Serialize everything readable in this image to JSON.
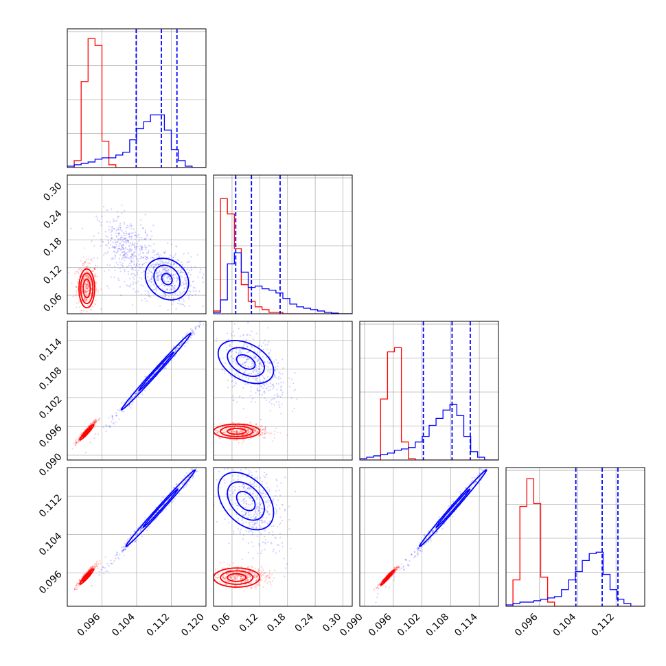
{
  "chart_data": {
    "type": "corner",
    "title": "",
    "grid": true,
    "colors": {
      "red": "#ff0000",
      "blue": "#0000ff"
    },
    "series": [
      {
        "color": "red"
      },
      {
        "color": "blue"
      }
    ],
    "variables": [
      {
        "range": [
          0.088,
          0.12
        ],
        "ticks": [
          "0.096",
          "0.104",
          "0.112",
          "0.120"
        ]
      },
      {
        "range": [
          0.02,
          0.32
        ],
        "ticks": [
          "0.06",
          "0.12",
          "0.18",
          "0.24",
          "0.30"
        ]
      },
      {
        "range": [
          0.089,
          0.118
        ],
        "ticks": [
          "0.090",
          "0.096",
          "0.102",
          "0.108",
          "0.114"
        ]
      },
      {
        "range": [
          0.089,
          0.118
        ],
        "ticks": [
          "0.096",
          "0.104",
          "0.112"
        ]
      }
    ],
    "quantiles_blue": [
      [
        0.1039,
        0.1097,
        0.1133
      ],
      [
        0.068,
        0.102,
        0.164
      ],
      [
        0.1023,
        0.1083,
        0.1121
      ],
      [
        0.1036,
        0.1091,
        0.1124
      ]
    ],
    "histograms": [
      {
        "red": [
          0,
          0.05,
          0.62,
          0.93,
          0.88,
          0.19,
          0.02,
          0,
          0,
          0,
          0,
          0,
          0,
          0,
          0,
          0,
          0,
          0,
          0,
          0
        ],
        "blue": [
          0.01,
          0.02,
          0.03,
          0.04,
          0.06,
          0.07,
          0.07,
          0.09,
          0.11,
          0.2,
          0.28,
          0.33,
          0.38,
          0.38,
          0.27,
          0.13,
          0.05,
          0.01,
          0,
          0
        ]
      },
      {
        "red": [
          0.02,
          0.83,
          0.72,
          0.47,
          0.21,
          0.09,
          0.05,
          0.03,
          0.01,
          0.01,
          0,
          0,
          0,
          0,
          0,
          0,
          0,
          0,
          0,
          0
        ],
        "blue": [
          0.01,
          0.1,
          0.36,
          0.44,
          0.3,
          0.19,
          0.2,
          0.18,
          0.17,
          0.15,
          0.11,
          0.07,
          0.05,
          0.04,
          0.03,
          0.02,
          0.01,
          0.005,
          0,
          0
        ]
      },
      {
        "red": [
          0,
          0,
          0,
          0.44,
          0.78,
          0.81,
          0.13,
          0.01,
          0,
          0,
          0,
          0,
          0,
          0,
          0,
          0,
          0,
          0,
          0,
          0
        ],
        "blue": [
          0.01,
          0.02,
          0.03,
          0.04,
          0.05,
          0.07,
          0.08,
          0.09,
          0.13,
          0.17,
          0.25,
          0.3,
          0.36,
          0.4,
          0.32,
          0.17,
          0.06,
          0.02,
          0,
          0
        ]
      },
      {
        "red": [
          0,
          0.19,
          0.72,
          0.92,
          0.74,
          0.21,
          0.03,
          0,
          0,
          0,
          0,
          0,
          0,
          0,
          0,
          0,
          0,
          0,
          0,
          0
        ],
        "blue": [
          0.01,
          0.02,
          0.03,
          0.03,
          0.04,
          0.05,
          0.06,
          0.07,
          0.12,
          0.19,
          0.25,
          0.33,
          0.38,
          0.39,
          0.23,
          0.12,
          0.05,
          0.02,
          0,
          0
        ]
      }
    ],
    "scatter_2d": [
      {
        "row": 1,
        "col": 0,
        "blobs": [
          {
            "color": "red",
            "center": [
              0.0925,
              0.08
            ],
            "spread": [
              0.0012,
              0.025
            ],
            "corr": 0
          },
          {
            "color": "blue",
            "center": [
              0.111,
              0.1
            ],
            "spread": [
              0.0035,
              0.03
            ],
            "corr": -0.2
          },
          {
            "color": "blue",
            "center": [
              0.102,
              0.16
            ],
            "spread": [
              0.0035,
              0.035
            ],
            "corr": -0.3
          }
        ],
        "contours": [
          {
            "color": "red",
            "center": [
              0.0925,
              0.075
            ],
            "radii": [
              [
                0.0008,
                0.02
              ],
              [
                0.0014,
                0.033
              ],
              [
                0.0018,
                0.042
              ]
            ],
            "corr": 0
          },
          {
            "color": "blue",
            "center": [
              0.111,
              0.095
            ],
            "radii": [
              [
                0.0012,
                0.012
              ],
              [
                0.003,
                0.03
              ],
              [
                0.005,
                0.045
              ]
            ],
            "corr": -0.2
          }
        ]
      },
      {
        "row": 2,
        "col": 0,
        "blobs": [
          {
            "color": "red",
            "center": [
              0.0925,
              0.095
            ],
            "spread": [
              0.001,
              0.001
            ],
            "corr": 0.95
          },
          {
            "color": "blue",
            "center": [
              0.109,
              0.108
            ],
            "spread": [
              0.006,
              0.006
            ],
            "corr": 0.995
          }
        ],
        "contours": [
          {
            "color": "red",
            "center": [
              0.0925,
              0.0948
            ],
            "radii": [
              [
                0.0009,
                0.0009
              ],
              [
                0.0016,
                0.0016
              ]
            ],
            "corr": 0.95
          },
          {
            "color": "blue",
            "center": [
              0.1085,
              0.1075
            ],
            "radii": [
              [
                0.004,
                0.004
              ],
              [
                0.008,
                0.008
              ]
            ],
            "corr": 0.995
          }
        ]
      },
      {
        "row": 2,
        "col": 1,
        "blobs": [
          {
            "color": "red",
            "center": [
              0.08,
              0.095
            ],
            "spread": [
              0.03,
              0.0008
            ],
            "corr": 0
          },
          {
            "color": "blue",
            "center": [
              0.11,
              0.108
            ],
            "spread": [
              0.035,
              0.004
            ],
            "corr": -0.4
          }
        ],
        "contours": [
          {
            "color": "red",
            "center": [
              0.07,
              0.095
            ],
            "radii": [
              [
                0.02,
                0.0006
              ],
              [
                0.035,
                0.0011
              ],
              [
                0.05,
                0.0015
              ]
            ],
            "corr": 0
          },
          {
            "color": "blue",
            "center": [
              0.09,
              0.1095
            ],
            "radii": [
              [
                0.02,
                0.0015
              ],
              [
                0.04,
                0.003
              ],
              [
                0.06,
                0.0045
              ]
            ],
            "corr": -0.4
          }
        ]
      },
      {
        "row": 3,
        "col": 0,
        "blobs": [
          {
            "color": "red",
            "center": [
              0.0925,
              0.0955
            ],
            "spread": [
              0.001,
              0.001
            ],
            "corr": 0.95
          },
          {
            "color": "blue",
            "center": [
              0.109,
              0.109
            ],
            "spread": [
              0.006,
              0.006
            ],
            "corr": 0.995
          }
        ],
        "contours": [
          {
            "color": "red",
            "center": [
              0.0925,
              0.0952
            ],
            "radii": [
              [
                0.0009,
                0.0009
              ],
              [
                0.0016,
                0.0016
              ]
            ],
            "corr": 0.95
          },
          {
            "color": "blue",
            "center": [
              0.1095,
              0.1095
            ],
            "radii": [
              [
                0.004,
                0.004
              ],
              [
                0.008,
                0.008
              ]
            ],
            "corr": 0.995
          }
        ]
      },
      {
        "row": 3,
        "col": 1,
        "blobs": [
          {
            "color": "red",
            "center": [
              0.08,
              0.0952
            ],
            "spread": [
              0.03,
              0.001
            ],
            "corr": 0
          },
          {
            "color": "blue",
            "center": [
              0.11,
              0.11
            ],
            "spread": [
              0.035,
              0.005
            ],
            "corr": -0.4
          }
        ],
        "contours": [
          {
            "color": "red",
            "center": [
              0.07,
              0.095
            ],
            "radii": [
              [
                0.02,
                0.0008
              ],
              [
                0.035,
                0.0014
              ],
              [
                0.05,
                0.002
              ]
            ],
            "corr": 0
          },
          {
            "color": "blue",
            "center": [
              0.09,
              0.111
            ],
            "radii": [
              [
                0.02,
                0.002
              ],
              [
                0.04,
                0.004
              ],
              [
                0.06,
                0.006
              ]
            ],
            "corr": -0.4
          }
        ]
      },
      {
        "row": 3,
        "col": 2,
        "blobs": [
          {
            "color": "red",
            "center": [
              0.095,
              0.0952
            ],
            "spread": [
              0.001,
              0.001
            ],
            "corr": 0.97
          },
          {
            "color": "blue",
            "center": [
              0.108,
              0.109
            ],
            "spread": [
              0.005,
              0.006
            ],
            "corr": 0.995
          }
        ],
        "contours": [
          {
            "color": "red",
            "center": [
              0.0948,
              0.095
            ],
            "radii": [
              [
                0.0008,
                0.0009
              ],
              [
                0.0014,
                0.0016
              ]
            ],
            "corr": 0.97
          },
          {
            "color": "blue",
            "center": [
              0.1085,
              0.1095
            ],
            "radii": [
              [
                0.0035,
                0.004
              ],
              [
                0.007,
                0.008
              ]
            ],
            "corr": 0.995
          }
        ]
      }
    ]
  }
}
